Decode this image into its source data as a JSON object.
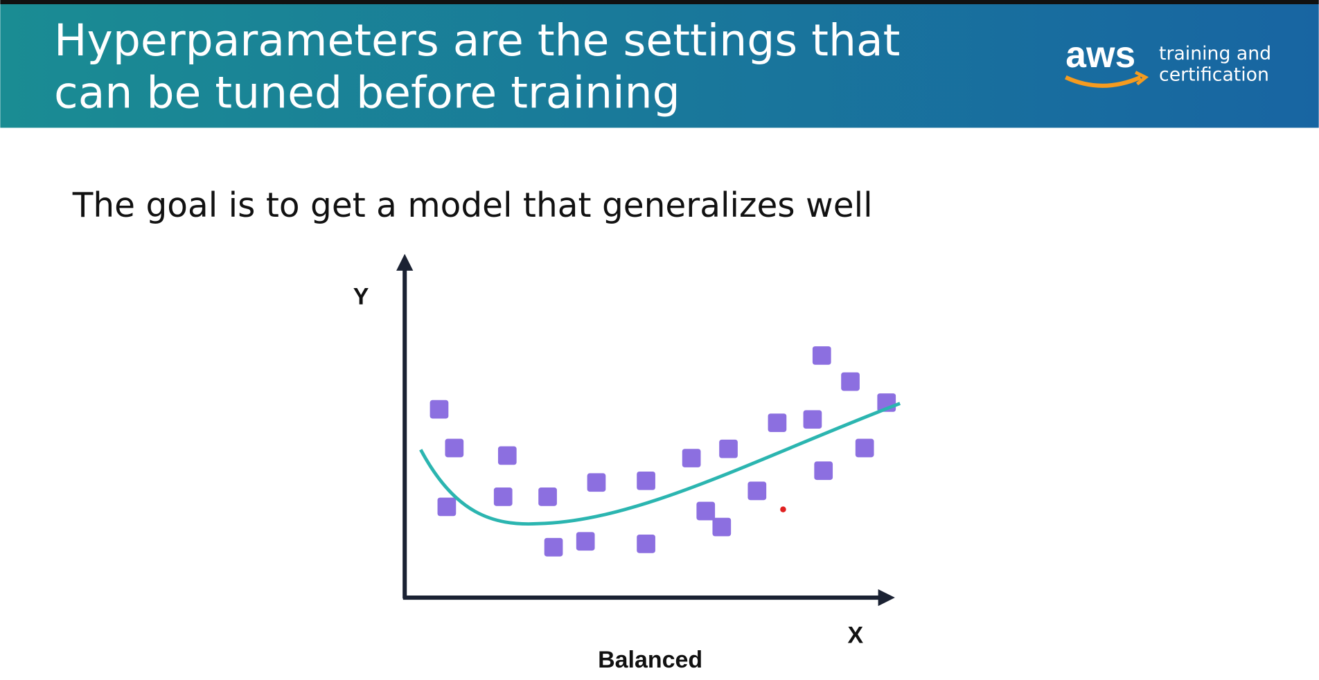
{
  "header": {
    "title": {
      "lines": [
        "Hyperparameters are the settings that",
        "can be tuned before training"
      ]
    },
    "logo": {
      "brand": "aws",
      "tagline": [
        "training and",
        "certification"
      ]
    }
  },
  "subtitle": "The goal is to get a model that generalizes well",
  "diagram": {
    "y_label": "Y",
    "x_label": "X",
    "caption": "Balanced"
  }
}
